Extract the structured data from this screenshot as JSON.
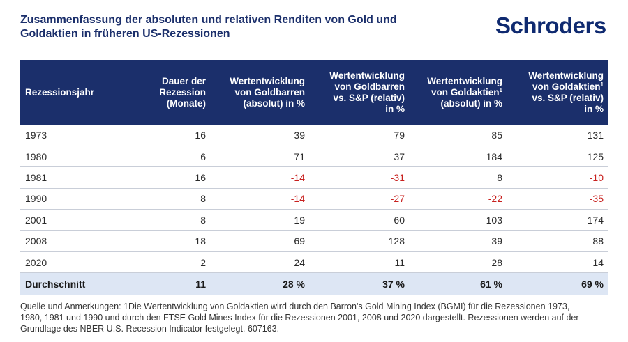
{
  "title": {
    "line1": "Zusammenfassung der absoluten und relativen Renditen von Gold und",
    "line2": "Goldaktien in früheren US-Rezessionen"
  },
  "logo": "Schroders",
  "table": {
    "headers": [
      [
        "Rezessionsjahr"
      ],
      [
        "Dauer der",
        "Rezession",
        "(Monate)"
      ],
      [
        "Wertentwicklung",
        "von Goldbarren",
        "(absolut) in %"
      ],
      [
        "Wertentwicklung",
        "von Goldbarren",
        "vs. S&P (relativ)",
        "in %"
      ],
      [
        "Wertentwicklung",
        "von Goldaktien",
        "(absolut) in %"
      ],
      [
        "Wertentwicklung",
        "von Goldaktien",
        "vs. S&P (relativ)",
        "in %"
      ]
    ],
    "footnote_marker": "1",
    "rows": [
      [
        "1973",
        "16",
        "39",
        "79",
        "85",
        "131"
      ],
      [
        "1980",
        "6",
        "71",
        "37",
        "184",
        "125"
      ],
      [
        "1981",
        "16",
        "-14",
        "-31",
        "8",
        "-10"
      ],
      [
        "1990",
        "8",
        "-14",
        "-27",
        "-22",
        "-35"
      ],
      [
        "2001",
        "8",
        "19",
        "60",
        "103",
        "174"
      ],
      [
        "2008",
        "18",
        "69",
        "128",
        "39",
        "88"
      ],
      [
        "2020",
        "2",
        "24",
        "11",
        "28",
        "14"
      ]
    ],
    "average": [
      "Durchschnitt",
      "11",
      "28 %",
      "37 %",
      "61 %",
      "69 %"
    ]
  },
  "footnote": {
    "line1": "Quelle und Anmerkungen: 1Die Wertentwicklung von Goldaktien wird durch den Barron's Gold Mining Index (BGMI) für die Rezessionen 1973,",
    "line2": "1980, 1981 und 1990 und durch den FTSE Gold Mines Index für die Rezessionen 2001, 2008 und 2020 dargestellt. Rezessionen werden auf der",
    "line3": "Grundlage des NBER U.S. Recession Indicator festgelegt. 607163."
  },
  "colors": {
    "header_bg": "#1b2f6b",
    "average_bg": "#dde6f4",
    "negative": "#c8201e",
    "title": "#1b2f6b"
  }
}
